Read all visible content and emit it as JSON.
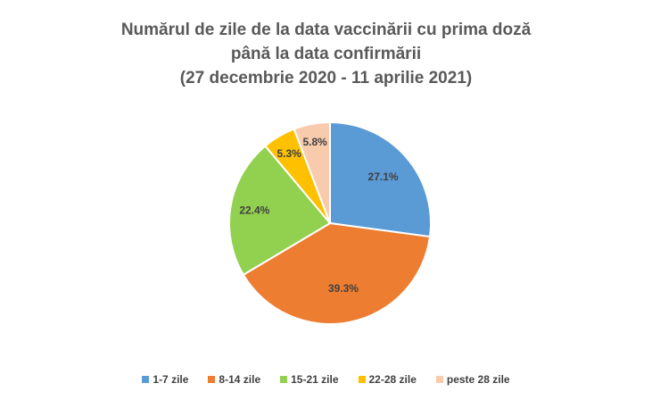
{
  "chart_data": {
    "type": "pie",
    "title_lines": [
      "Numărul de zile de la data vaccinării cu prima doză",
      "până la data confirmării",
      "(27 decembrie 2020 - 11 aprilie 2021)"
    ],
    "categories": [
      "1-7 zile",
      "8-14 zile",
      "15-21 zile",
      "22-28 zile",
      "peste 28 zile"
    ],
    "values": [
      27.1,
      39.3,
      22.4,
      5.3,
      5.8
    ],
    "data_labels": [
      "27.1%",
      "39.3%",
      "22.4%",
      "5.3%",
      "5.8%"
    ],
    "colors": [
      "#5B9BD5",
      "#ED7D31",
      "#92D050",
      "#FFC000",
      "#F8CBAD"
    ],
    "legend_position": "bottom"
  }
}
